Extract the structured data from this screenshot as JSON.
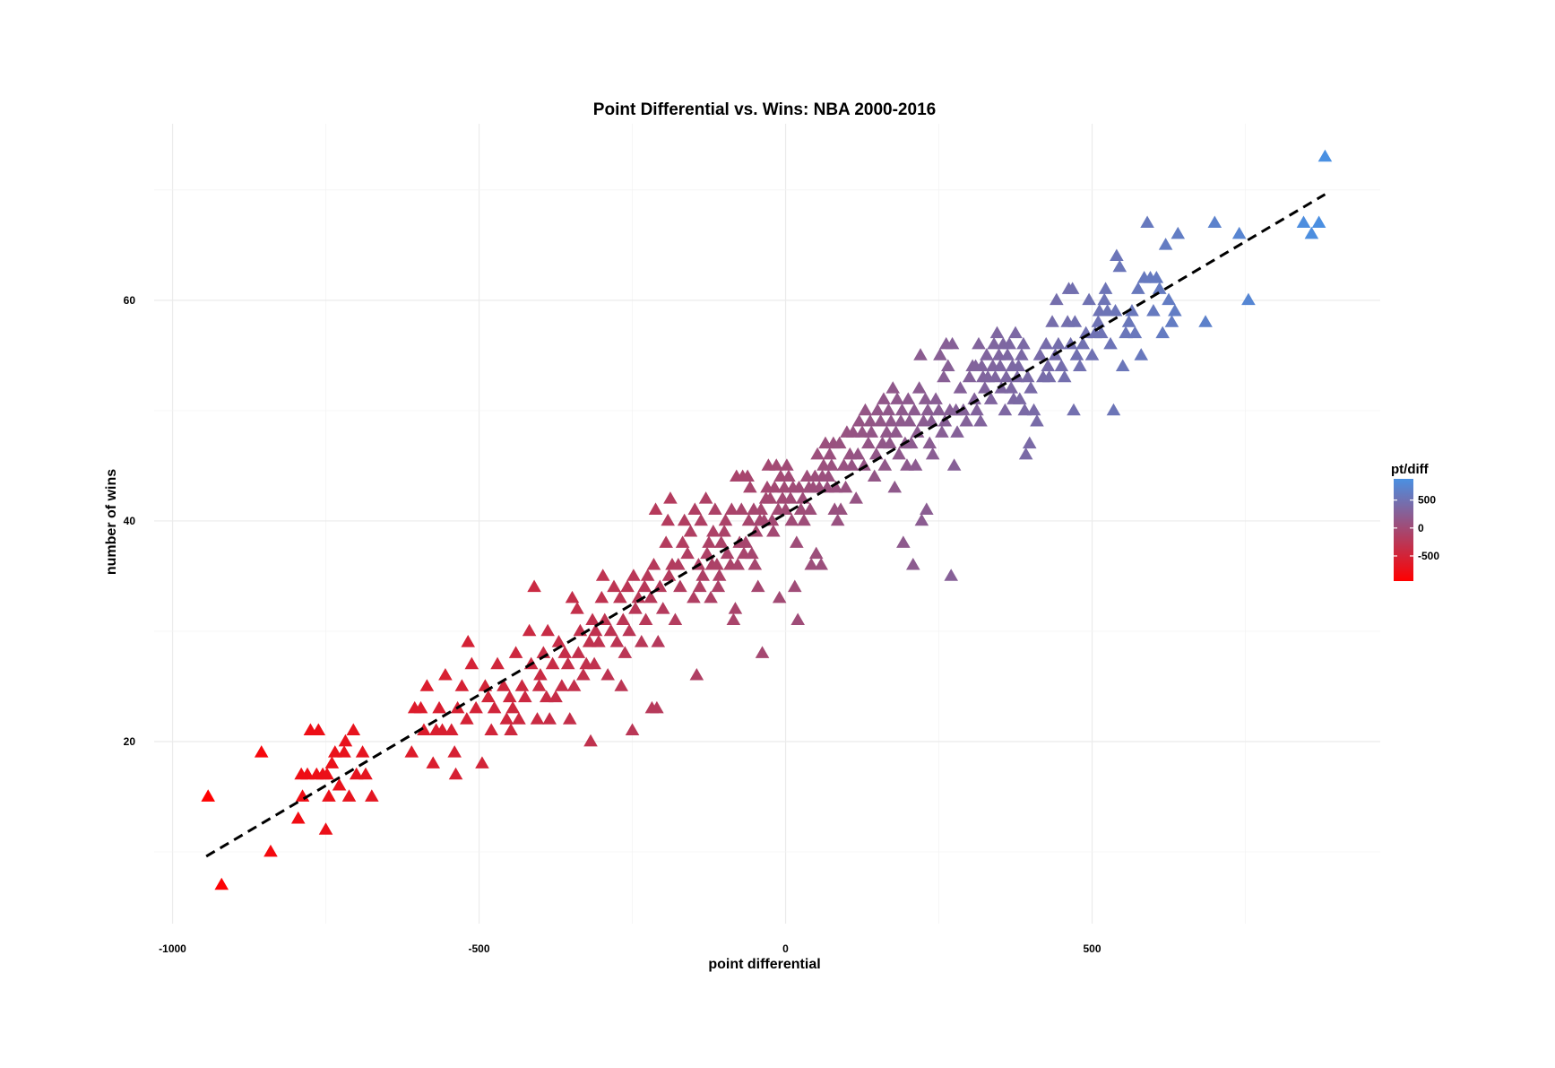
{
  "chart_data": {
    "type": "scatter",
    "title": "Point Differential vs. Wins: NBA 2000-2016",
    "xlabel": "point differential",
    "ylabel": "number of wins",
    "xlim": [
      -1030,
      970
    ],
    "ylim": [
      3.5,
      76
    ],
    "x_ticks": [
      -1000,
      -500,
      0,
      500
    ],
    "x_tick_labels": [
      "-1000",
      "-500",
      "0",
      "500"
    ],
    "y_ticks": [
      20,
      40,
      60
    ],
    "y_tick_labels": [
      "20",
      "40",
      "60"
    ],
    "grid": true,
    "marker": "triangle",
    "color_scale": {
      "title": "pt/diff",
      "low_color": "#ff0000",
      "high_color": "#4a90e2",
      "domain": [
        -950,
        880
      ],
      "breaks": [
        500,
        0,
        -500
      ],
      "break_labels": [
        "500",
        "0",
        "-500"
      ],
      "legend_position": "right"
    },
    "trend_line": {
      "style": "dashed",
      "color": "#000000",
      "x": [
        -945,
        880
      ],
      "y": [
        9.6,
        69.6
      ]
    },
    "points": [
      [
        -942,
        15
      ],
      [
        -920,
        7
      ],
      [
        -855,
        19
      ],
      [
        -840,
        10
      ],
      [
        -795,
        13
      ],
      [
        -790,
        17
      ],
      [
        -788,
        15
      ],
      [
        -780,
        17
      ],
      [
        -775,
        21
      ],
      [
        -765,
        17
      ],
      [
        -762,
        21
      ],
      [
        -755,
        17
      ],
      [
        -750,
        12
      ],
      [
        -748,
        17
      ],
      [
        -745,
        15
      ],
      [
        -740,
        18
      ],
      [
        -735,
        19
      ],
      [
        -728,
        16
      ],
      [
        -720,
        19
      ],
      [
        -718,
        20
      ],
      [
        -712,
        15
      ],
      [
        -705,
        21
      ],
      [
        -700,
        17
      ],
      [
        -690,
        19
      ],
      [
        -685,
        17
      ],
      [
        -675,
        15
      ],
      [
        -610,
        19
      ],
      [
        -605,
        23
      ],
      [
        -595,
        23
      ],
      [
        -590,
        21
      ],
      [
        -585,
        25
      ],
      [
        -575,
        18
      ],
      [
        -570,
        21
      ],
      [
        -565,
        23
      ],
      [
        -560,
        21
      ],
      [
        -555,
        26
      ],
      [
        -545,
        21
      ],
      [
        -540,
        19
      ],
      [
        -538,
        17
      ],
      [
        -535,
        23
      ],
      [
        -528,
        25
      ],
      [
        -520,
        22
      ],
      [
        -518,
        29
      ],
      [
        -512,
        27
      ],
      [
        -505,
        23
      ],
      [
        -495,
        18
      ],
      [
        -490,
        25
      ],
      [
        -485,
        24
      ],
      [
        -480,
        21
      ],
      [
        -475,
        23
      ],
      [
        -470,
        27
      ],
      [
        -460,
        25
      ],
      [
        -455,
        22
      ],
      [
        -450,
        24
      ],
      [
        -448,
        21
      ],
      [
        -445,
        23
      ],
      [
        -440,
        28
      ],
      [
        -435,
        22
      ],
      [
        -430,
        25
      ],
      [
        -425,
        24
      ],
      [
        -418,
        30
      ],
      [
        -415,
        27
      ],
      [
        -410,
        34
      ],
      [
        -405,
        22
      ],
      [
        -402,
        25
      ],
      [
        -400,
        26
      ],
      [
        -395,
        28
      ],
      [
        -390,
        24
      ],
      [
        -388,
        30
      ],
      [
        -385,
        22
      ],
      [
        -380,
        27
      ],
      [
        -375,
        24
      ],
      [
        -370,
        29
      ],
      [
        -365,
        25
      ],
      [
        -360,
        28
      ],
      [
        -355,
        27
      ],
      [
        -352,
        22
      ],
      [
        -348,
        33
      ],
      [
        -345,
        25
      ],
      [
        -340,
        32
      ],
      [
        -338,
        28
      ],
      [
        -335,
        30
      ],
      [
        -330,
        26
      ],
      [
        -325,
        27
      ],
      [
        -320,
        29
      ],
      [
        -318,
        20
      ],
      [
        -315,
        31
      ],
      [
        -312,
        27
      ],
      [
        -310,
        30
      ],
      [
        -305,
        29
      ],
      [
        -300,
        33
      ],
      [
        -298,
        35
      ],
      [
        -295,
        31
      ],
      [
        -290,
        26
      ],
      [
        -285,
        30
      ],
      [
        -280,
        34
      ],
      [
        -275,
        29
      ],
      [
        -270,
        33
      ],
      [
        -268,
        25
      ],
      [
        -265,
        31
      ],
      [
        -262,
        28
      ],
      [
        -258,
        34
      ],
      [
        -255,
        30
      ],
      [
        -250,
        21
      ],
      [
        -248,
        35
      ],
      [
        -245,
        32
      ],
      [
        -240,
        33
      ],
      [
        -235,
        29
      ],
      [
        -230,
        34
      ],
      [
        -228,
        31
      ],
      [
        -225,
        35
      ],
      [
        -220,
        33
      ],
      [
        -218,
        23
      ],
      [
        -215,
        36
      ],
      [
        -212,
        41
      ],
      [
        -210,
        23
      ],
      [
        -208,
        29
      ],
      [
        -205,
        34
      ],
      [
        -200,
        32
      ],
      [
        -195,
        38
      ],
      [
        -192,
        40
      ],
      [
        -190,
        35
      ],
      [
        -188,
        42
      ],
      [
        -185,
        36
      ],
      [
        -180,
        31
      ],
      [
        -175,
        36
      ],
      [
        -172,
        34
      ],
      [
        -168,
        38
      ],
      [
        -165,
        40
      ],
      [
        -160,
        37
      ],
      [
        -155,
        39
      ],
      [
        -150,
        33
      ],
      [
        -148,
        41
      ],
      [
        -145,
        26
      ],
      [
        -142,
        36
      ],
      [
        -140,
        34
      ],
      [
        -138,
        40
      ],
      [
        -135,
        35
      ],
      [
        -130,
        42
      ],
      [
        -128,
        37
      ],
      [
        -125,
        38
      ],
      [
        -122,
        33
      ],
      [
        -120,
        36
      ],
      [
        -118,
        39
      ],
      [
        -115,
        41
      ],
      [
        -112,
        36
      ],
      [
        -110,
        34
      ],
      [
        -108,
        35
      ],
      [
        -105,
        38
      ],
      [
        -100,
        39
      ],
      [
        -98,
        40
      ],
      [
        -95,
        37
      ],
      [
        -90,
        36
      ],
      [
        -88,
        41
      ],
      [
        -85,
        31
      ],
      [
        -82,
        32
      ],
      [
        -80,
        44
      ],
      [
        -78,
        36
      ],
      [
        -75,
        38
      ],
      [
        -72,
        41
      ],
      [
        -70,
        44
      ],
      [
        -68,
        37
      ],
      [
        -65,
        38
      ],
      [
        -62,
        44
      ],
      [
        -60,
        40
      ],
      [
        -58,
        43
      ],
      [
        -55,
        37
      ],
      [
        -52,
        41
      ],
      [
        -50,
        36
      ],
      [
        -48,
        39
      ],
      [
        -45,
        34
      ],
      [
        -42,
        40
      ],
      [
        -40,
        41
      ],
      [
        -38,
        28
      ],
      [
        -35,
        40
      ],
      [
        -32,
        42
      ],
      [
        -30,
        43
      ],
      [
        -28,
        45
      ],
      [
        -25,
        42
      ],
      [
        -22,
        40
      ],
      [
        -20,
        39
      ],
      [
        -18,
        43
      ],
      [
        -15,
        45
      ],
      [
        -12,
        41
      ],
      [
        -10,
        33
      ],
      [
        -8,
        44
      ],
      [
        -5,
        42
      ],
      [
        -2,
        43
      ],
      [
        0,
        41
      ],
      [
        2,
        45
      ],
      [
        5,
        44
      ],
      [
        8,
        42
      ],
      [
        10,
        40
      ],
      [
        12,
        43
      ],
      [
        15,
        34
      ],
      [
        18,
        38
      ],
      [
        20,
        31
      ],
      [
        22,
        43
      ],
      [
        25,
        41
      ],
      [
        28,
        42
      ],
      [
        30,
        40
      ],
      [
        35,
        44
      ],
      [
        38,
        43
      ],
      [
        40,
        41
      ],
      [
        42,
        36
      ],
      [
        45,
        43
      ],
      [
        48,
        44
      ],
      [
        50,
        37
      ],
      [
        52,
        46
      ],
      [
        55,
        43
      ],
      [
        58,
        36
      ],
      [
        60,
        44
      ],
      [
        62,
        45
      ],
      [
        65,
        47
      ],
      [
        68,
        43
      ],
      [
        70,
        44
      ],
      [
        72,
        46
      ],
      [
        75,
        45
      ],
      [
        78,
        47
      ],
      [
        80,
        41
      ],
      [
        82,
        43
      ],
      [
        85,
        40
      ],
      [
        88,
        47
      ],
      [
        90,
        41
      ],
      [
        95,
        45
      ],
      [
        98,
        43
      ],
      [
        100,
        48
      ],
      [
        105,
        46
      ],
      [
        108,
        45
      ],
      [
        110,
        48
      ],
      [
        115,
        42
      ],
      [
        118,
        46
      ],
      [
        120,
        49
      ],
      [
        125,
        48
      ],
      [
        128,
        45
      ],
      [
        130,
        50
      ],
      [
        135,
        47
      ],
      [
        138,
        49
      ],
      [
        140,
        48
      ],
      [
        145,
        44
      ],
      [
        148,
        46
      ],
      [
        150,
        50
      ],
      [
        155,
        49
      ],
      [
        158,
        47
      ],
      [
        160,
        51
      ],
      [
        162,
        45
      ],
      [
        165,
        48
      ],
      [
        168,
        50
      ],
      [
        170,
        47
      ],
      [
        172,
        49
      ],
      [
        175,
        52
      ],
      [
        178,
        43
      ],
      [
        180,
        48
      ],
      [
        182,
        51
      ],
      [
        185,
        46
      ],
      [
        188,
        49
      ],
      [
        190,
        50
      ],
      [
        192,
        38
      ],
      [
        195,
        47
      ],
      [
        198,
        45
      ],
      [
        200,
        51
      ],
      [
        202,
        49
      ],
      [
        205,
        47
      ],
      [
        208,
        36
      ],
      [
        210,
        50
      ],
      [
        212,
        45
      ],
      [
        215,
        48
      ],
      [
        218,
        52
      ],
      [
        220,
        55
      ],
      [
        222,
        40
      ],
      [
        225,
        49
      ],
      [
        228,
        51
      ],
      [
        230,
        41
      ],
      [
        232,
        50
      ],
      [
        235,
        47
      ],
      [
        238,
        49
      ],
      [
        240,
        46
      ],
      [
        245,
        51
      ],
      [
        250,
        50
      ],
      [
        252,
        55
      ],
      [
        255,
        48
      ],
      [
        258,
        53
      ],
      [
        260,
        49
      ],
      [
        262,
        56
      ],
      [
        265,
        54
      ],
      [
        268,
        50
      ],
      [
        270,
        35
      ],
      [
        272,
        56
      ],
      [
        275,
        45
      ],
      [
        278,
        50
      ],
      [
        280,
        48
      ],
      [
        285,
        52
      ],
      [
        290,
        50
      ],
      [
        295,
        49
      ],
      [
        300,
        53
      ],
      [
        305,
        54
      ],
      [
        308,
        51
      ],
      [
        310,
        54
      ],
      [
        312,
        50
      ],
      [
        315,
        56
      ],
      [
        318,
        49
      ],
      [
        320,
        54
      ],
      [
        322,
        53
      ],
      [
        325,
        52
      ],
      [
        328,
        55
      ],
      [
        330,
        53
      ],
      [
        335,
        51
      ],
      [
        338,
        54
      ],
      [
        340,
        56
      ],
      [
        342,
        53
      ],
      [
        345,
        57
      ],
      [
        348,
        55
      ],
      [
        350,
        54
      ],
      [
        352,
        52
      ],
      [
        355,
        56
      ],
      [
        358,
        50
      ],
      [
        360,
        53
      ],
      [
        362,
        55
      ],
      [
        365,
        56
      ],
      [
        368,
        52
      ],
      [
        370,
        54
      ],
      [
        372,
        51
      ],
      [
        375,
        57
      ],
      [
        378,
        53
      ],
      [
        380,
        54
      ],
      [
        382,
        51
      ],
      [
        385,
        55
      ],
      [
        388,
        56
      ],
      [
        390,
        50
      ],
      [
        392,
        46
      ],
      [
        395,
        53
      ],
      [
        398,
        47
      ],
      [
        400,
        52
      ],
      [
        405,
        50
      ],
      [
        410,
        49
      ],
      [
        415,
        55
      ],
      [
        420,
        53
      ],
      [
        425,
        56
      ],
      [
        428,
        54
      ],
      [
        430,
        53
      ],
      [
        435,
        58
      ],
      [
        440,
        55
      ],
      [
        442,
        60
      ],
      [
        445,
        56
      ],
      [
        450,
        54
      ],
      [
        455,
        53
      ],
      [
        460,
        58
      ],
      [
        462,
        61
      ],
      [
        465,
        56
      ],
      [
        468,
        61
      ],
      [
        470,
        50
      ],
      [
        472,
        58
      ],
      [
        475,
        55
      ],
      [
        480,
        54
      ],
      [
        485,
        56
      ],
      [
        490,
        57
      ],
      [
        495,
        60
      ],
      [
        500,
        55
      ],
      [
        505,
        57
      ],
      [
        510,
        58
      ],
      [
        512,
        59
      ],
      [
        515,
        57
      ],
      [
        520,
        60
      ],
      [
        522,
        61
      ],
      [
        525,
        59
      ],
      [
        530,
        56
      ],
      [
        535,
        50
      ],
      [
        538,
        59
      ],
      [
        540,
        64
      ],
      [
        545,
        63
      ],
      [
        550,
        54
      ],
      [
        555,
        57
      ],
      [
        560,
        58
      ],
      [
        565,
        59
      ],
      [
        570,
        57
      ],
      [
        575,
        61
      ],
      [
        580,
        55
      ],
      [
        585,
        62
      ],
      [
        590,
        67
      ],
      [
        595,
        62
      ],
      [
        600,
        59
      ],
      [
        605,
        62
      ],
      [
        610,
        61
      ],
      [
        615,
        57
      ],
      [
        620,
        65
      ],
      [
        625,
        60
      ],
      [
        630,
        58
      ],
      [
        635,
        59
      ],
      [
        640,
        66
      ],
      [
        685,
        58
      ],
      [
        700,
        67
      ],
      [
        740,
        66
      ],
      [
        755,
        60
      ],
      [
        845,
        67
      ],
      [
        858,
        66
      ],
      [
        870,
        67
      ],
      [
        880,
        73
      ]
    ]
  }
}
